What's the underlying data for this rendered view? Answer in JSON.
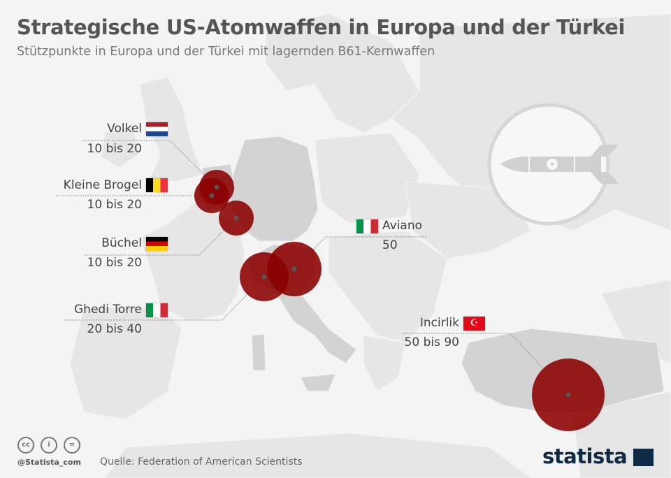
{
  "header": {
    "title": "Strategische US-Atomwaffen in Europa und der Türkei",
    "subtitle": "Stützpunkte in Europa und der Türkei mit lagernden B61-Kernwaffen"
  },
  "bases": [
    {
      "name": "Volkel",
      "count": "10 bis 20",
      "country": "Niederlande"
    },
    {
      "name": "Kleine Brogel",
      "count": "10 bis 20",
      "country": "Belgien"
    },
    {
      "name": "Büchel",
      "count": "10 bis 20",
      "country": "Deutschland"
    },
    {
      "name": "Ghedi Torre",
      "count": "20 bis 40",
      "country": "Italien"
    },
    {
      "name": "Aviano",
      "count": "50",
      "country": "Italien"
    },
    {
      "name": "Incirlik",
      "count": "50 bis 90",
      "country": "Türkei"
    }
  ],
  "colors": {
    "circle": "#8b0000",
    "land": "#e4e4e4",
    "highlight": "#d2d2d2",
    "background": "#f4f4f4"
  },
  "footer": {
    "handle": "@Statista_com",
    "source": "Quelle: Federation of American Scientists",
    "logo": "statista",
    "cc_icons": [
      "cc",
      "i",
      "="
    ]
  }
}
